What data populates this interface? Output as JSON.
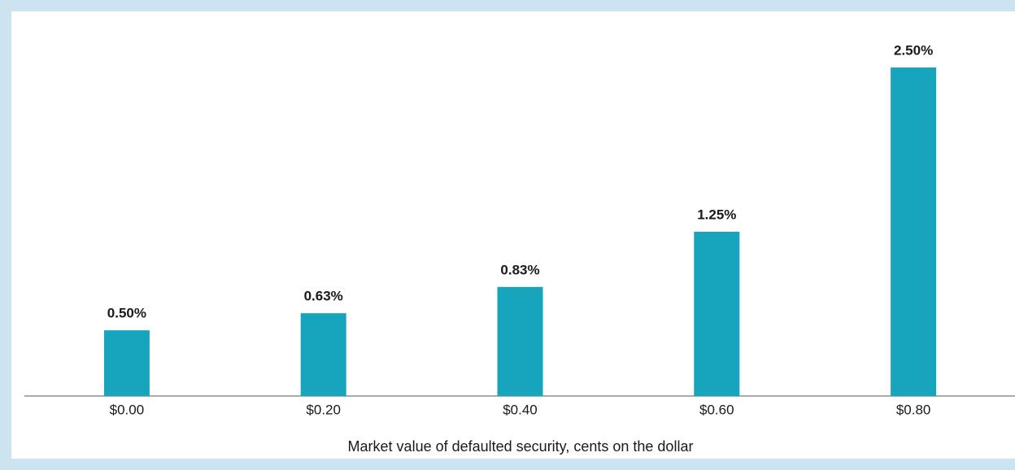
{
  "chart_data": {
    "type": "bar",
    "x_label": "Market value of defaulted security, cents on the dollar",
    "categories": [
      "$0.00",
      "$0.20",
      "$0.40",
      "$0.60",
      "$0.80"
    ],
    "values": [
      0.5,
      0.63,
      0.83,
      1.25,
      2.5
    ],
    "value_labels": [
      "0.50%",
      "0.63%",
      "0.83%",
      "1.25%",
      "2.50%"
    ],
    "color": "#17a4bd"
  }
}
